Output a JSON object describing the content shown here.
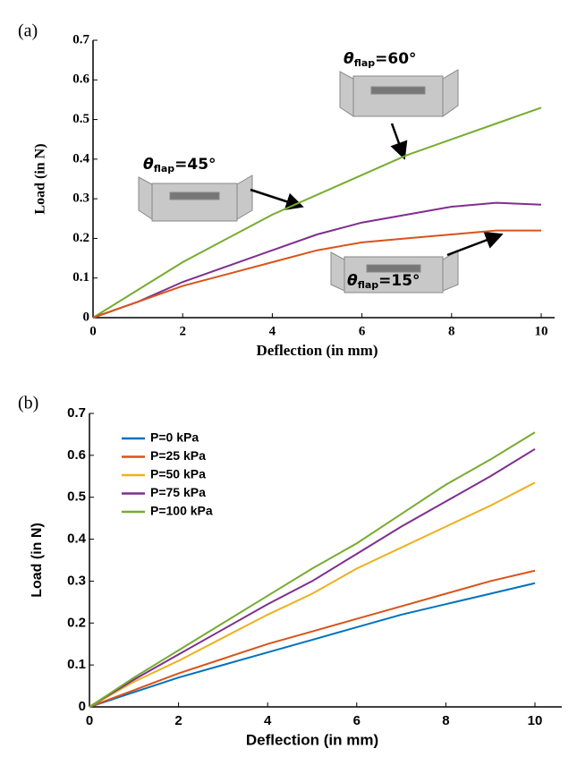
{
  "chart_data": [
    {
      "type": "line",
      "panel_label": "(a)",
      "xlabel": "Deflection (in mm)",
      "ylabel": "Load (in N)",
      "x": [
        0,
        1,
        2,
        3,
        4,
        5,
        6,
        7,
        8,
        9,
        10
      ],
      "series": [
        {
          "color": "#77ac30",
          "values": [
            0,
            0.07,
            0.14,
            0.2,
            0.26,
            0.31,
            0.36,
            0.41,
            0.45,
            0.49,
            0.53
          ]
        },
        {
          "color": "#7e2f8e",
          "values": [
            0,
            0.04,
            0.09,
            0.13,
            0.17,
            0.21,
            0.24,
            0.26,
            0.28,
            0.29,
            0.285
          ]
        },
        {
          "color": "#d95319",
          "values": [
            0,
            0.04,
            0.08,
            0.11,
            0.14,
            0.17,
            0.19,
            0.2,
            0.21,
            0.22,
            0.22
          ]
        }
      ],
      "annotations": [
        {
          "symbol": "θ",
          "sub": "flap",
          "text": "=60°"
        },
        {
          "symbol": "θ",
          "sub": "flap",
          "text": "=45°"
        },
        {
          "symbol": "θ",
          "sub": "flap",
          "text": "=15°"
        }
      ],
      "xlim": [
        0,
        10
      ],
      "ylim": [
        0,
        0.7
      ],
      "xticks": [
        0,
        2,
        4,
        6,
        8,
        10
      ],
      "yticks": [
        0,
        0.1,
        0.2,
        0.3,
        0.4,
        0.5,
        0.6,
        0.7
      ]
    },
    {
      "type": "line",
      "panel_label": "(b)",
      "xlabel": "Deflection (in mm)",
      "ylabel": "Load (in N)",
      "x": [
        0,
        1,
        2,
        3,
        4,
        5,
        6,
        7,
        8,
        9,
        10
      ],
      "series": [
        {
          "name": "P=0 kPa",
          "color": "#0072bd",
          "values": [
            0,
            0.035,
            0.07,
            0.1,
            0.13,
            0.16,
            0.19,
            0.22,
            0.245,
            0.27,
            0.295
          ]
        },
        {
          "name": "P=25 kPa",
          "color": "#d95319",
          "values": [
            0,
            0.04,
            0.08,
            0.115,
            0.15,
            0.18,
            0.21,
            0.24,
            0.27,
            0.3,
            0.325
          ]
        },
        {
          "name": "P=50 kPa",
          "color": "#edb120",
          "values": [
            0,
            0.06,
            0.11,
            0.165,
            0.22,
            0.27,
            0.33,
            0.38,
            0.43,
            0.48,
            0.535
          ]
        },
        {
          "name": "P=75 kPa",
          "color": "#7e2f8e",
          "values": [
            0,
            0.065,
            0.125,
            0.185,
            0.245,
            0.3,
            0.365,
            0.43,
            0.49,
            0.55,
            0.615
          ]
        },
        {
          "name": "P=100 kPa",
          "color": "#77ac30",
          "values": [
            0,
            0.07,
            0.135,
            0.2,
            0.265,
            0.33,
            0.39,
            0.46,
            0.53,
            0.59,
            0.655
          ]
        }
      ],
      "legend": "upper left",
      "xlim": [
        0,
        10
      ],
      "ylim": [
        0,
        0.7
      ],
      "xticks": [
        0,
        2,
        4,
        6,
        8,
        10
      ],
      "yticks": [
        0,
        0.1,
        0.2,
        0.3,
        0.4,
        0.5,
        0.6,
        0.7
      ]
    }
  ]
}
